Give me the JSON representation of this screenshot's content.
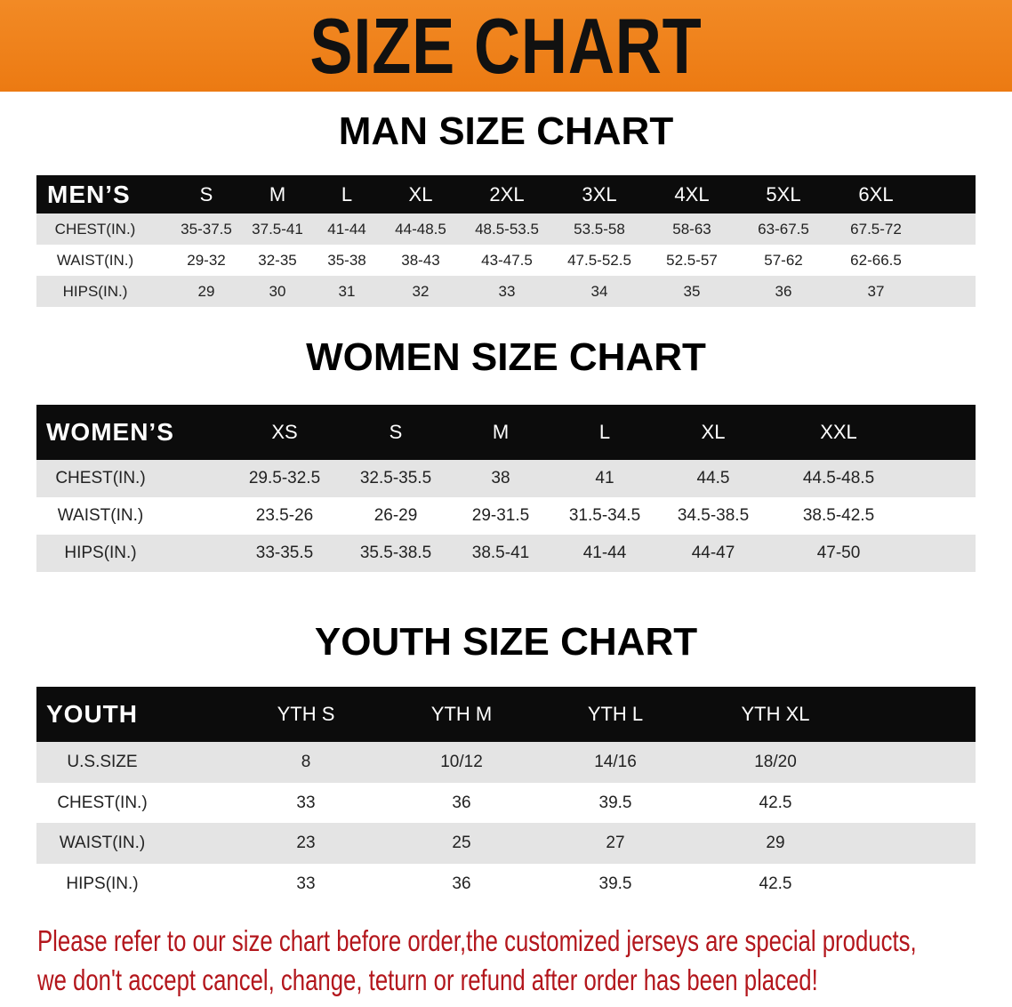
{
  "banner": {
    "title": "SIZE CHART",
    "color": "#ee7f1a"
  },
  "men": {
    "title": "MAN SIZE CHART",
    "header": [
      "MEN’S",
      "S",
      "M",
      "L",
      "XL",
      "2XL",
      "3XL",
      "4XL",
      "5XL",
      "6XL"
    ],
    "rows": [
      [
        "CHEST(IN.)",
        "35-37.5",
        "37.5-41",
        "41-44",
        "44-48.5",
        "48.5-53.5",
        "53.5-58",
        "58-63",
        "63-67.5",
        "67.5-72"
      ],
      [
        "WAIST(IN.)",
        "29-32",
        "32-35",
        "35-38",
        "38-43",
        "43-47.5",
        "47.5-52.5",
        "52.5-57",
        "57-62",
        "62-66.5"
      ],
      [
        "HIPS(IN.)",
        "29",
        "30",
        "31",
        "32",
        "33",
        "34",
        "35",
        "36",
        "37"
      ]
    ]
  },
  "women": {
    "title": "WOMEN SIZE CHART",
    "header": [
      "WOMEN’S",
      "XS",
      "S",
      "M",
      "L",
      "XL",
      "XXL"
    ],
    "rows": [
      [
        "CHEST(IN.)",
        "29.5-32.5",
        "32.5-35.5",
        "38",
        "41",
        "44.5",
        "44.5-48.5"
      ],
      [
        "WAIST(IN.)",
        "23.5-26",
        "26-29",
        "29-31.5",
        "31.5-34.5",
        "34.5-38.5",
        "38.5-42.5"
      ],
      [
        "HIPS(IN.)",
        "33-35.5",
        "35.5-38.5",
        "38.5-41",
        "41-44",
        "44-47",
        "47-50"
      ]
    ]
  },
  "youth": {
    "title": "YOUTH SIZE CHART",
    "header": [
      "YOUTH",
      "YTH S",
      "YTH M",
      "YTH L",
      "YTH XL"
    ],
    "rows": [
      [
        "U.S.SIZE",
        "8",
        "10/12",
        "14/16",
        "18/20"
      ],
      [
        "CHEST(IN.)",
        "33",
        "36",
        "39.5",
        "42.5"
      ],
      [
        "WAIST(IN.)",
        "23",
        "25",
        "27",
        "29"
      ],
      [
        "HIPS(IN.)",
        "33",
        "36",
        "39.5",
        "42.5"
      ]
    ]
  },
  "note": {
    "line1": "Please refer to our size chart before order,the customized jerseys are special products,",
    "line2": "we don't accept cancel, change, teturn or refund after order has been placed!",
    "color": "#b3161c"
  }
}
